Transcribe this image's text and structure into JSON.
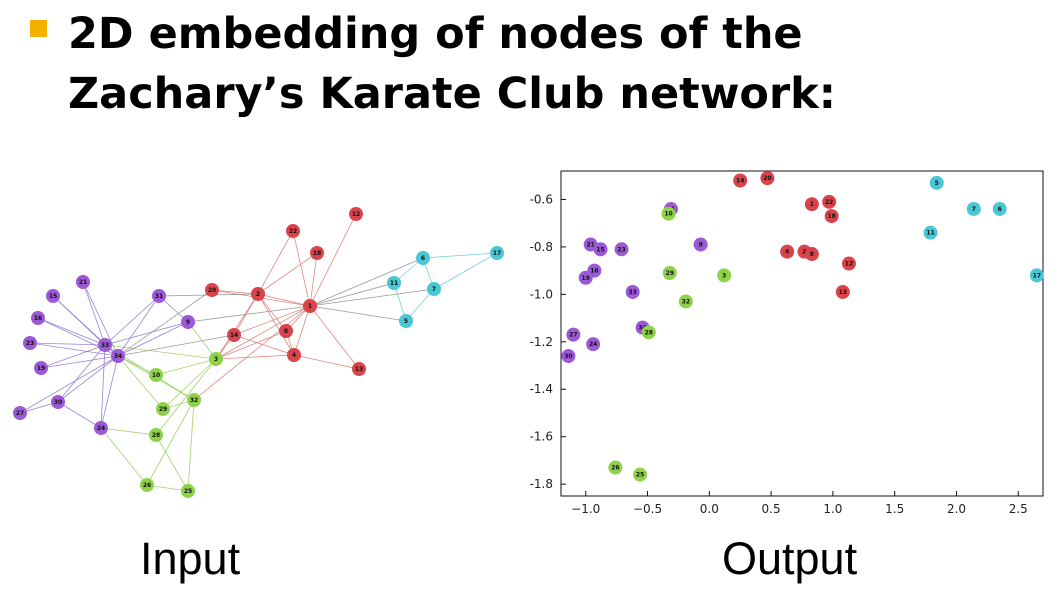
{
  "slide": {
    "title": "2D embedding of nodes of the Zachary’s Karate Club network:",
    "input_label": "Input",
    "output_label": "Output",
    "bullet_color": "#f2b100"
  },
  "colors": {
    "purple": "#9b59d6",
    "red": "#d9434a",
    "green": "#8ed24a",
    "cyan": "#48c7d4",
    "edge_purple": "#8a6fd0",
    "edge_red": "#d9736f",
    "edge_green": "#8ecf52",
    "edge_gray": "#888888",
    "edge_cyan": "#5ec8d2"
  },
  "chart_data": [
    {
      "type": "network",
      "nodes": [
        {
          "id": "1",
          "group": "red"
        },
        {
          "id": "2",
          "group": "red"
        },
        {
          "id": "3",
          "group": "green"
        },
        {
          "id": "4",
          "group": "red"
        },
        {
          "id": "5",
          "group": "cyan"
        },
        {
          "id": "6",
          "group": "cyan"
        },
        {
          "id": "7",
          "group": "cyan"
        },
        {
          "id": "8",
          "group": "red"
        },
        {
          "id": "9",
          "group": "purple"
        },
        {
          "id": "10",
          "group": "green"
        },
        {
          "id": "11",
          "group": "cyan"
        },
        {
          "id": "12",
          "group": "red"
        },
        {
          "id": "13",
          "group": "red"
        },
        {
          "id": "14",
          "group": "red"
        },
        {
          "id": "15",
          "group": "purple"
        },
        {
          "id": "16",
          "group": "purple"
        },
        {
          "id": "17",
          "group": "cyan"
        },
        {
          "id": "18",
          "group": "red"
        },
        {
          "id": "19",
          "group": "purple"
        },
        {
          "id": "20",
          "group": "red"
        },
        {
          "id": "21",
          "group": "purple"
        },
        {
          "id": "22",
          "group": "red"
        },
        {
          "id": "23",
          "group": "purple"
        },
        {
          "id": "24",
          "group": "purple"
        },
        {
          "id": "25",
          "group": "green"
        },
        {
          "id": "26",
          "group": "green"
        },
        {
          "id": "27",
          "group": "purple"
        },
        {
          "id": "28",
          "group": "green"
        },
        {
          "id": "29",
          "group": "green"
        },
        {
          "id": "30",
          "group": "purple"
        },
        {
          "id": "31",
          "group": "purple"
        },
        {
          "id": "32",
          "group": "green"
        },
        {
          "id": "33",
          "group": "purple"
        },
        {
          "id": "34",
          "group": "purple"
        }
      ],
      "edges": [
        [
          "1",
          "2"
        ],
        [
          "1",
          "3"
        ],
        [
          "1",
          "4"
        ],
        [
          "1",
          "5"
        ],
        [
          "1",
          "6"
        ],
        [
          "1",
          "7"
        ],
        [
          "1",
          "8"
        ],
        [
          "1",
          "9"
        ],
        [
          "1",
          "11"
        ],
        [
          "1",
          "12"
        ],
        [
          "1",
          "13"
        ],
        [
          "1",
          "14"
        ],
        [
          "1",
          "18"
        ],
        [
          "1",
          "20"
        ],
        [
          "1",
          "22"
        ],
        [
          "1",
          "32"
        ],
        [
          "2",
          "3"
        ],
        [
          "2",
          "4"
        ],
        [
          "2",
          "8"
        ],
        [
          "2",
          "14"
        ],
        [
          "2",
          "18"
        ],
        [
          "2",
          "20"
        ],
        [
          "2",
          "22"
        ],
        [
          "2",
          "31"
        ],
        [
          "3",
          "4"
        ],
        [
          "3",
          "8"
        ],
        [
          "3",
          "9"
        ],
        [
          "3",
          "10"
        ],
        [
          "3",
          "14"
        ],
        [
          "3",
          "28"
        ],
        [
          "3",
          "29"
        ],
        [
          "3",
          "33"
        ],
        [
          "4",
          "8"
        ],
        [
          "4",
          "13"
        ],
        [
          "4",
          "14"
        ],
        [
          "5",
          "7"
        ],
        [
          "5",
          "11"
        ],
        [
          "6",
          "7"
        ],
        [
          "6",
          "11"
        ],
        [
          "6",
          "17"
        ],
        [
          "7",
          "17"
        ],
        [
          "9",
          "31"
        ],
        [
          "9",
          "33"
        ],
        [
          "9",
          "34"
        ],
        [
          "10",
          "34"
        ],
        [
          "14",
          "34"
        ],
        [
          "15",
          "33"
        ],
        [
          "15",
          "34"
        ],
        [
          "16",
          "33"
        ],
        [
          "16",
          "34"
        ],
        [
          "19",
          "33"
        ],
        [
          "19",
          "34"
        ],
        [
          "20",
          "34"
        ],
        [
          "21",
          "33"
        ],
        [
          "21",
          "34"
        ],
        [
          "23",
          "33"
        ],
        [
          "23",
          "34"
        ],
        [
          "24",
          "26"
        ],
        [
          "24",
          "28"
        ],
        [
          "24",
          "30"
        ],
        [
          "24",
          "33"
        ],
        [
          "24",
          "34"
        ],
        [
          "25",
          "26"
        ],
        [
          "25",
          "28"
        ],
        [
          "25",
          "32"
        ],
        [
          "26",
          "32"
        ],
        [
          "27",
          "30"
        ],
        [
          "27",
          "34"
        ],
        [
          "29",
          "32"
        ],
        [
          "29",
          "34"
        ],
        [
          "30",
          "33"
        ],
        [
          "30",
          "34"
        ],
        [
          "31",
          "33"
        ],
        [
          "31",
          "34"
        ],
        [
          "32",
          "33"
        ],
        [
          "32",
          "34"
        ],
        [
          "33",
          "34"
        ]
      ]
    },
    {
      "type": "scatter",
      "xlim": [
        -1.2,
        2.7
      ],
      "ylim": [
        -1.85,
        -0.48
      ],
      "xticks": [
        "−1.0",
        "−0.5",
        "0.0",
        "0.5",
        "1.0",
        "1.5",
        "2.0",
        "2.5"
      ],
      "xtick_values": [
        -1.0,
        -0.5,
        0.0,
        0.5,
        1.0,
        1.5,
        2.0,
        2.5
      ],
      "yticks": [
        "-0.6",
        "-0.8",
        "-1.0",
        "-1.2",
        "-1.4",
        "-1.6",
        "-1.8"
      ],
      "ytick_values": [
        -0.6,
        -0.8,
        -1.0,
        -1.2,
        -1.4,
        -1.6,
        -1.8
      ],
      "points": [
        {
          "id": "14",
          "x": 0.25,
          "y": -0.52,
          "group": "red"
        },
        {
          "id": "20",
          "x": 0.47,
          "y": -0.51,
          "group": "red"
        },
        {
          "id": "1",
          "x": 0.83,
          "y": -0.62,
          "group": "red"
        },
        {
          "id": "22",
          "x": 0.97,
          "y": -0.61,
          "group": "red"
        },
        {
          "id": "18",
          "x": 0.99,
          "y": -0.67,
          "group": "red"
        },
        {
          "id": "4",
          "x": 0.63,
          "y": -0.82,
          "group": "red"
        },
        {
          "id": "2",
          "x": 0.77,
          "y": -0.82,
          "group": "red"
        },
        {
          "id": "8",
          "x": 0.83,
          "y": -0.83,
          "group": "red"
        },
        {
          "id": "12",
          "x": 1.13,
          "y": -0.87,
          "group": "red"
        },
        {
          "id": "13",
          "x": 1.08,
          "y": -0.99,
          "group": "red"
        },
        {
          "id": "5",
          "x": 1.84,
          "y": -0.53,
          "group": "cyan"
        },
        {
          "id": "7",
          "x": 2.14,
          "y": -0.64,
          "group": "cyan"
        },
        {
          "id": "6",
          "x": 2.35,
          "y": -0.64,
          "group": "cyan"
        },
        {
          "id": "11",
          "x": 1.79,
          "y": -0.74,
          "group": "cyan"
        },
        {
          "id": "17",
          "x": 2.65,
          "y": -0.92,
          "group": "cyan"
        },
        {
          "id": "31",
          "x": -0.31,
          "y": -0.64,
          "group": "purple"
        },
        {
          "id": "9",
          "x": -0.07,
          "y": -0.79,
          "group": "purple"
        },
        {
          "id": "21",
          "x": -0.96,
          "y": -0.79,
          "group": "purple"
        },
        {
          "id": "15",
          "x": -0.88,
          "y": -0.81,
          "group": "purple"
        },
        {
          "id": "23",
          "x": -0.71,
          "y": -0.81,
          "group": "purple"
        },
        {
          "id": "16",
          "x": -0.93,
          "y": -0.9,
          "group": "purple"
        },
        {
          "id": "19",
          "x": -1.0,
          "y": -0.93,
          "group": "purple"
        },
        {
          "id": "33",
          "x": -0.62,
          "y": -0.99,
          "group": "purple"
        },
        {
          "id": "34",
          "x": -0.54,
          "y": -1.14,
          "group": "purple"
        },
        {
          "id": "27",
          "x": -1.1,
          "y": -1.17,
          "group": "purple"
        },
        {
          "id": "24",
          "x": -0.94,
          "y": -1.21,
          "group": "purple"
        },
        {
          "id": "30",
          "x": -1.14,
          "y": -1.26,
          "group": "purple"
        },
        {
          "id": "10",
          "x": -0.33,
          "y": -0.66,
          "group": "green"
        },
        {
          "id": "29",
          "x": -0.32,
          "y": -0.91,
          "group": "green"
        },
        {
          "id": "3",
          "x": 0.12,
          "y": -0.92,
          "group": "green"
        },
        {
          "id": "32",
          "x": -0.19,
          "y": -1.03,
          "group": "green"
        },
        {
          "id": "28",
          "x": -0.49,
          "y": -1.16,
          "group": "green"
        },
        {
          "id": "26",
          "x": -0.76,
          "y": -1.73,
          "group": "green"
        },
        {
          "id": "25",
          "x": -0.56,
          "y": -1.76,
          "group": "green"
        }
      ]
    }
  ]
}
